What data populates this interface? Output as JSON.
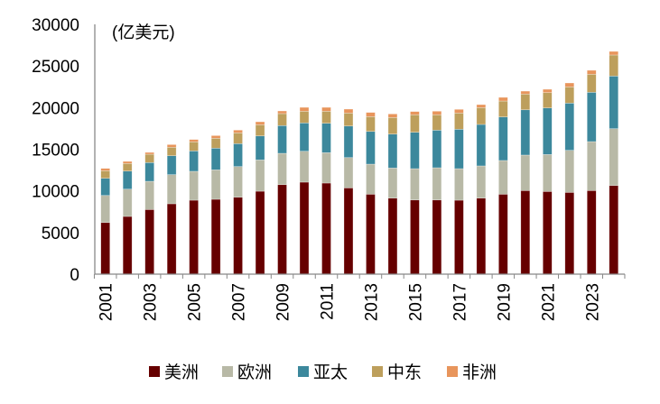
{
  "chart_data": {
    "type": "bar",
    "stacked": true,
    "unit_label": "(亿美元)",
    "ylim": [
      0,
      30000
    ],
    "yticks": [
      0,
      5000,
      10000,
      15000,
      20000,
      25000,
      30000
    ],
    "grid": false,
    "legend_position": "bottom",
    "categories": [
      "2001",
      "2002",
      "2003",
      "2004",
      "2005",
      "2006",
      "2007",
      "2008",
      "2009",
      "2010",
      "2011",
      "2012",
      "2013",
      "2014",
      "2015",
      "2016",
      "2017",
      "2018",
      "2019",
      "2020",
      "2021",
      "2022",
      "2023",
      "2024"
    ],
    "xtick_labels": [
      "2001",
      "",
      "2003",
      "",
      "2005",
      "",
      "2007",
      "",
      "2009",
      "",
      "2011",
      "",
      "2013",
      "",
      "2015",
      "",
      "2017",
      "",
      "2019",
      "",
      "2021",
      "",
      "2023",
      ""
    ],
    "series": [
      {
        "name": "美洲",
        "color": "#660000",
        "values": [
          6200,
          6930,
          7760,
          8450,
          8880,
          8990,
          9240,
          9960,
          10750,
          11050,
          10940,
          10360,
          9600,
          9130,
          8910,
          8910,
          8880,
          9130,
          9600,
          10040,
          9930,
          9820,
          10040,
          10650
        ]
      },
      {
        "name": "欧洲",
        "color": "#b8b9a6",
        "values": [
          3250,
          3280,
          3390,
          3500,
          3470,
          3540,
          3680,
          3760,
          3760,
          3710,
          3650,
          3640,
          3610,
          3620,
          3760,
          3870,
          3790,
          3870,
          4050,
          4260,
          4440,
          5050,
          5880,
          6820
        ]
      },
      {
        "name": "亚太",
        "color": "#3c889c",
        "values": [
          2060,
          2170,
          2250,
          2270,
          2450,
          2600,
          2750,
          2880,
          3330,
          3400,
          3530,
          3790,
          3930,
          4070,
          4370,
          4510,
          4730,
          4980,
          5230,
          5440,
          5590,
          5670,
          5920,
          6320
        ]
      },
      {
        "name": "中东",
        "color": "#bd9f5c",
        "values": [
          910,
          910,
          1000,
          1020,
          1090,
          1190,
          1300,
          1340,
          1440,
          1410,
          1450,
          1560,
          1780,
          1990,
          2100,
          1850,
          1950,
          2020,
          1910,
          1890,
          1840,
          1950,
          2170,
          2530
        ]
      },
      {
        "name": "非洲",
        "color": "#e8955c",
        "values": [
          280,
          250,
          220,
          320,
          280,
          320,
          330,
          360,
          320,
          460,
          460,
          470,
          500,
          430,
          390,
          430,
          440,
          360,
          440,
          350,
          400,
          470,
          470,
          430
        ]
      }
    ]
  }
}
